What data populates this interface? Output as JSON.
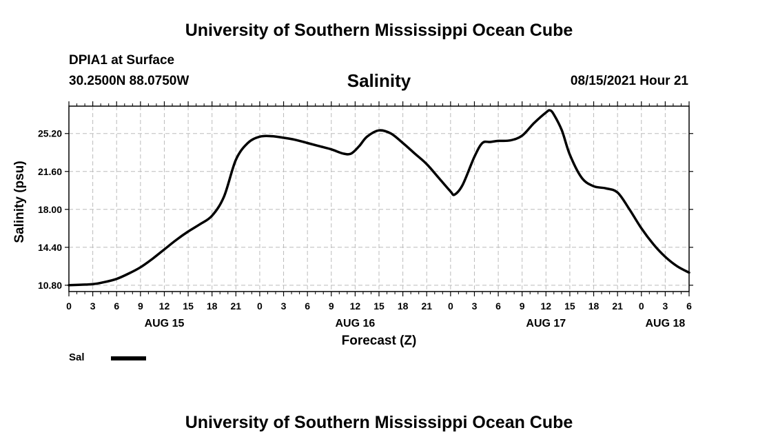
{
  "header": {
    "title": "University of Southern Mississippi Ocean Cube",
    "station": "DPIA1 at Surface",
    "coordinates": "30.2500N  88.0750W",
    "datetime": "08/15/2021 Hour 21"
  },
  "footer": {
    "title": "University of Southern Mississippi Ocean Cube"
  },
  "legend": {
    "label": "Sal",
    "color": "#000000"
  },
  "chart_data": {
    "type": "line",
    "title": "Salinity",
    "xlabel": "Forecast (Z)",
    "ylabel": "Salinity (psu)",
    "grid": true,
    "line_color": "#000000",
    "grid_color": "#bbbbbb",
    "xlim": [
      0,
      78
    ],
    "ylim": [
      10.2,
      27.8
    ],
    "y_ticks": [
      10.8,
      14.4,
      18.0,
      21.6,
      25.2
    ],
    "y_tick_labels": [
      "10.80",
      "14.40",
      "18.00",
      "21.60",
      "25.20"
    ],
    "x_ticks": [
      0,
      3,
      6,
      9,
      12,
      15,
      18,
      21,
      24,
      27,
      30,
      33,
      36,
      39,
      42,
      45,
      48,
      51,
      54,
      57,
      60,
      63,
      66,
      69,
      72,
      75,
      78
    ],
    "x_tick_labels": [
      "0",
      "3",
      "6",
      "9",
      "12",
      "15",
      "18",
      "21",
      "0",
      "3",
      "6",
      "9",
      "12",
      "15",
      "18",
      "21",
      "0",
      "3",
      "6",
      "9",
      "12",
      "15",
      "18",
      "21",
      "0",
      "3",
      "6"
    ],
    "date_labels": [
      {
        "hour": 12,
        "label": "AUG 15"
      },
      {
        "hour": 36,
        "label": "AUG 16"
      },
      {
        "hour": 60,
        "label": "AUG 17"
      },
      {
        "hour": 75,
        "label": "AUG 18"
      }
    ],
    "series": [
      {
        "name": "Sal",
        "x": [
          0,
          1.5,
          3,
          4.5,
          6,
          7.5,
          9,
          10.5,
          12,
          13.5,
          15,
          16.5,
          18,
          19.5,
          21,
          22.5,
          24,
          25.5,
          27,
          28.5,
          30,
          31.5,
          33,
          34.5,
          35.5,
          36.5,
          37.5,
          39,
          40.5,
          42,
          43.5,
          45,
          46.5,
          48,
          48.5,
          49.5,
          51,
          52,
          53,
          54,
          55.5,
          57,
          58.5,
          60,
          60.5,
          61,
          62,
          63,
          64.5,
          66,
          67.5,
          69,
          70.5,
          72,
          73.5,
          75,
          76.5,
          78
        ],
        "y": [
          10.8,
          10.85,
          10.9,
          11.1,
          11.4,
          11.9,
          12.5,
          13.3,
          14.2,
          15.1,
          15.9,
          16.6,
          17.4,
          19.2,
          22.7,
          24.3,
          24.9,
          24.95,
          24.8,
          24.6,
          24.3,
          24.0,
          23.7,
          23.3,
          23.3,
          24.0,
          24.9,
          25.5,
          25.2,
          24.3,
          23.3,
          22.3,
          21.0,
          19.7,
          19.4,
          20.3,
          23.0,
          24.3,
          24.4,
          24.5,
          24.55,
          25.0,
          26.2,
          27.2,
          27.4,
          27.0,
          25.5,
          23.2,
          21.0,
          20.2,
          20.0,
          19.6,
          18.0,
          16.2,
          14.7,
          13.5,
          12.6,
          12.0
        ]
      }
    ]
  }
}
